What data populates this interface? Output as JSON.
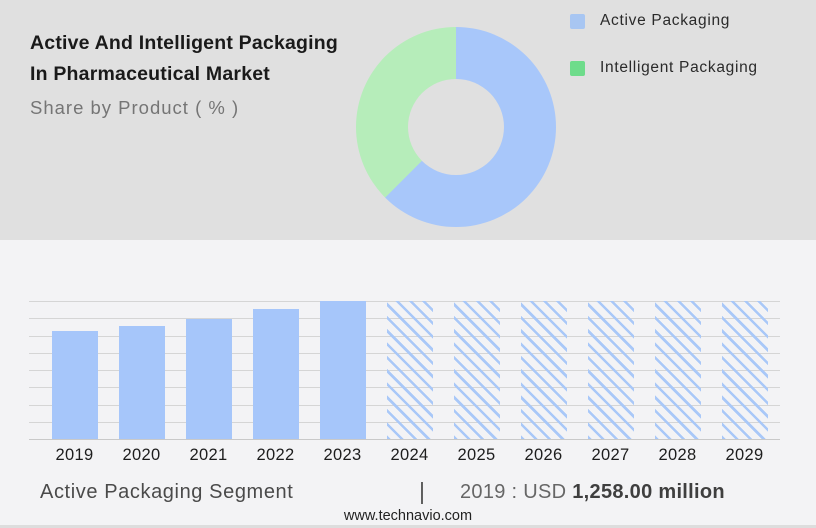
{
  "header": {
    "title_line1": "Active And Intelligent Packaging",
    "title_line2": "In Pharmaceutical Market",
    "subtitle": "Share by Product ( % )"
  },
  "legend": {
    "items": [
      {
        "label": "Active Packaging",
        "color": "#a8c6f2"
      },
      {
        "label": "Intelligent Packaging",
        "color": "#6edc8b"
      }
    ]
  },
  "footer": {
    "segment_label": "Active Packaging Segment",
    "separator": "|",
    "stat_prefix": "2019 : USD",
    "stat_value": "1,258.00 million",
    "website": "www.technavio.com"
  },
  "colors": {
    "header_background": "#e0e0e0",
    "body_background": "#f3f3f5",
    "bar_blue": "#a6c6fa",
    "donut_blue": "#a8c7fa",
    "donut_green": "#b6edba",
    "gridline": "#d5d5d5"
  },
  "chart_data": [
    {
      "type": "pie",
      "subtype": "donut",
      "title": "Share by Product ( % )",
      "legend_position": "right",
      "start_angle_deg": 0,
      "series": [
        {
          "name": "Active Packaging",
          "value": 62.5,
          "color": "#a8c7fa"
        },
        {
          "name": "Intelligent Packaging",
          "value": 37.5,
          "color": "#b6edba"
        }
      ]
    },
    {
      "type": "bar",
      "title": "Active Packaging Segment",
      "categories": [
        "2019",
        "2020",
        "2021",
        "2022",
        "2023",
        "2024",
        "2025",
        "2026",
        "2027",
        "2028",
        "2029"
      ],
      "relative_heights": [
        0.78,
        0.82,
        0.87,
        0.94,
        1.0,
        1.0,
        1.0,
        1.0,
        1.0,
        1.0,
        1.0
      ],
      "solid_count": 5,
      "forecast_style": "hatched",
      "bar_color": "#a6c6fa",
      "hatch_color": "#a9c8f8",
      "gridline_count": 9,
      "grid": "horizontal",
      "xlabel": "",
      "ylabel": "",
      "ylim": [
        0,
        1
      ],
      "known_point": {
        "category": "2019",
        "label": "USD 1,258.00 million"
      }
    }
  ]
}
